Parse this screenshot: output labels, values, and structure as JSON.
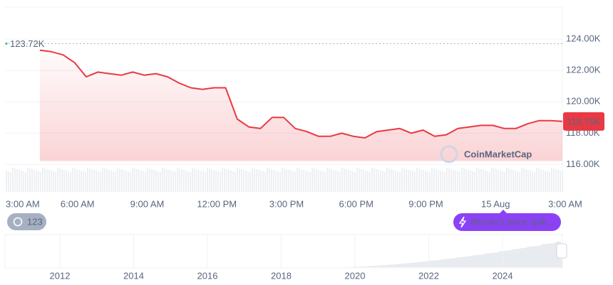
{
  "chart_data": {
    "type": "line",
    "categories": [
      "3:00 AM",
      null,
      null,
      null,
      null,
      null,
      "6:00 AM",
      null,
      null,
      null,
      null,
      null,
      "9:00 AM",
      null,
      null,
      null,
      null,
      null,
      "12:00 PM",
      null,
      null,
      null,
      null,
      null,
      "3:00 PM",
      null,
      null,
      null,
      null,
      null,
      "6:00 PM",
      null,
      null,
      null,
      null,
      null,
      "9:00 PM",
      null,
      null,
      null,
      null,
      null,
      "15 Aug",
      null,
      null,
      null,
      null,
      null,
      "3:00 AM"
    ],
    "series": [
      {
        "color": "#ea3943",
        "values": [
          null,
          null,
          null,
          123.3,
          123.2,
          123.0,
          122.5,
          121.6,
          121.9,
          121.8,
          121.7,
          121.9,
          121.7,
          121.8,
          121.6,
          121.2,
          120.9,
          120.8,
          120.9,
          120.9,
          118.9,
          118.4,
          118.3,
          119.0,
          119.0,
          118.3,
          118.1,
          117.8,
          117.8,
          118.0,
          117.8,
          117.7,
          118.1,
          118.2,
          118.3,
          118.0,
          118.2,
          117.8,
          117.9,
          118.3,
          118.4,
          118.5,
          118.5,
          118.3,
          118.3,
          118.6,
          118.8,
          118.8,
          118.75
        ]
      }
    ],
    "ylim": [
      114.25,
      126.05
    ],
    "yticks": [
      {
        "value": 116,
        "label": "116.00K"
      },
      {
        "value": 118,
        "label": "118.00K"
      },
      {
        "value": 120,
        "label": "120.00K"
      },
      {
        "value": 122,
        "label": "122.00K"
      },
      {
        "value": 124,
        "label": "124.00K"
      }
    ],
    "grid": true,
    "high": {
      "value": 123.72,
      "label": "123.72K"
    },
    "current": {
      "value": 118.75,
      "label": "118.75K"
    },
    "watermark": "CoinMarketCap",
    "history_chip": "123",
    "news_chip": "Bitcoin's price spik...",
    "navigator_labels": [
      "2012",
      "2014",
      "2016",
      "2018",
      "2020",
      "2022",
      "2024"
    ]
  }
}
